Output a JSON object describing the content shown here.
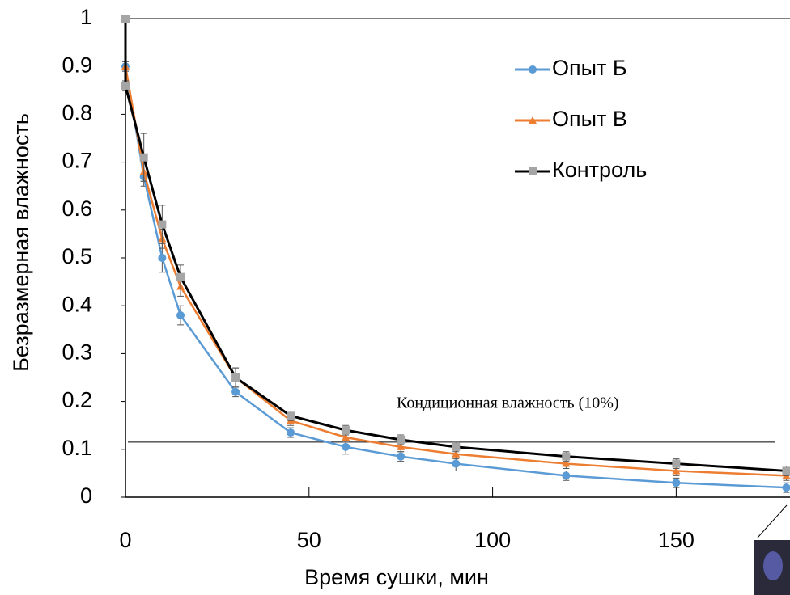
{
  "chart_data": {
    "type": "line",
    "x_label": "Время сушки, мин",
    "y_label": "Безразмерная влажность",
    "xlim": [
      0,
      181
    ],
    "xticks": [
      0,
      50,
      100,
      150
    ],
    "ylim": [
      0,
      1
    ],
    "yticks": [
      0,
      0.1,
      0.2,
      0.3,
      0.4,
      0.5,
      0.6,
      0.7,
      0.8,
      0.9,
      1
    ],
    "annotation": {
      "text": "Кондиционная  влажность (10%)",
      "value": 0.115
    },
    "series": [
      {
        "name": "Опыт Б",
        "color": "#5b9bd5",
        "marker": "circle",
        "x": [
          0,
          5,
          10,
          15,
          30,
          45,
          60,
          75,
          90,
          120,
          150,
          180
        ],
        "values": [
          0.9,
          0.67,
          0.5,
          0.38,
          0.22,
          0.135,
          0.105,
          0.085,
          0.07,
          0.045,
          0.03,
          0.02
        ],
        "errors": [
          0.01,
          0.02,
          0.03,
          0.02,
          0.01,
          0.01,
          0.015,
          0.01,
          0.015,
          0.01,
          0.01,
          0.01
        ]
      },
      {
        "name": "Опыт В",
        "color": "#ed7d31",
        "marker": "triangle",
        "x": [
          0,
          5,
          10,
          15,
          30,
          45,
          60,
          75,
          90,
          120,
          150,
          180
        ],
        "values": [
          0.9,
          0.68,
          0.54,
          0.44,
          0.25,
          0.16,
          0.125,
          0.105,
          0.09,
          0.07,
          0.055,
          0.045
        ],
        "errors": [
          0.01,
          0.02,
          0.02,
          0.02,
          0.02,
          0.01,
          0.01,
          0.01,
          0.01,
          0.01,
          0.01,
          0.01
        ]
      },
      {
        "name": "Контроль",
        "color": "#000000",
        "marker_color": "#a5a5a5",
        "marker": "square",
        "x": [
          0,
          0,
          5,
          10,
          15,
          30,
          45,
          60,
          75,
          90,
          120,
          150,
          180
        ],
        "values": [
          1,
          0.86,
          0.71,
          0.57,
          0.46,
          0.25,
          0.17,
          0.14,
          0.12,
          0.105,
          0.085,
          0.07,
          0.055
        ],
        "errors": [
          0,
          0.01,
          0.05,
          0.04,
          0.025,
          0.02,
          0.01,
          0.01,
          0.01,
          0.01,
          0.01,
          0.01,
          0.01
        ]
      }
    ]
  }
}
